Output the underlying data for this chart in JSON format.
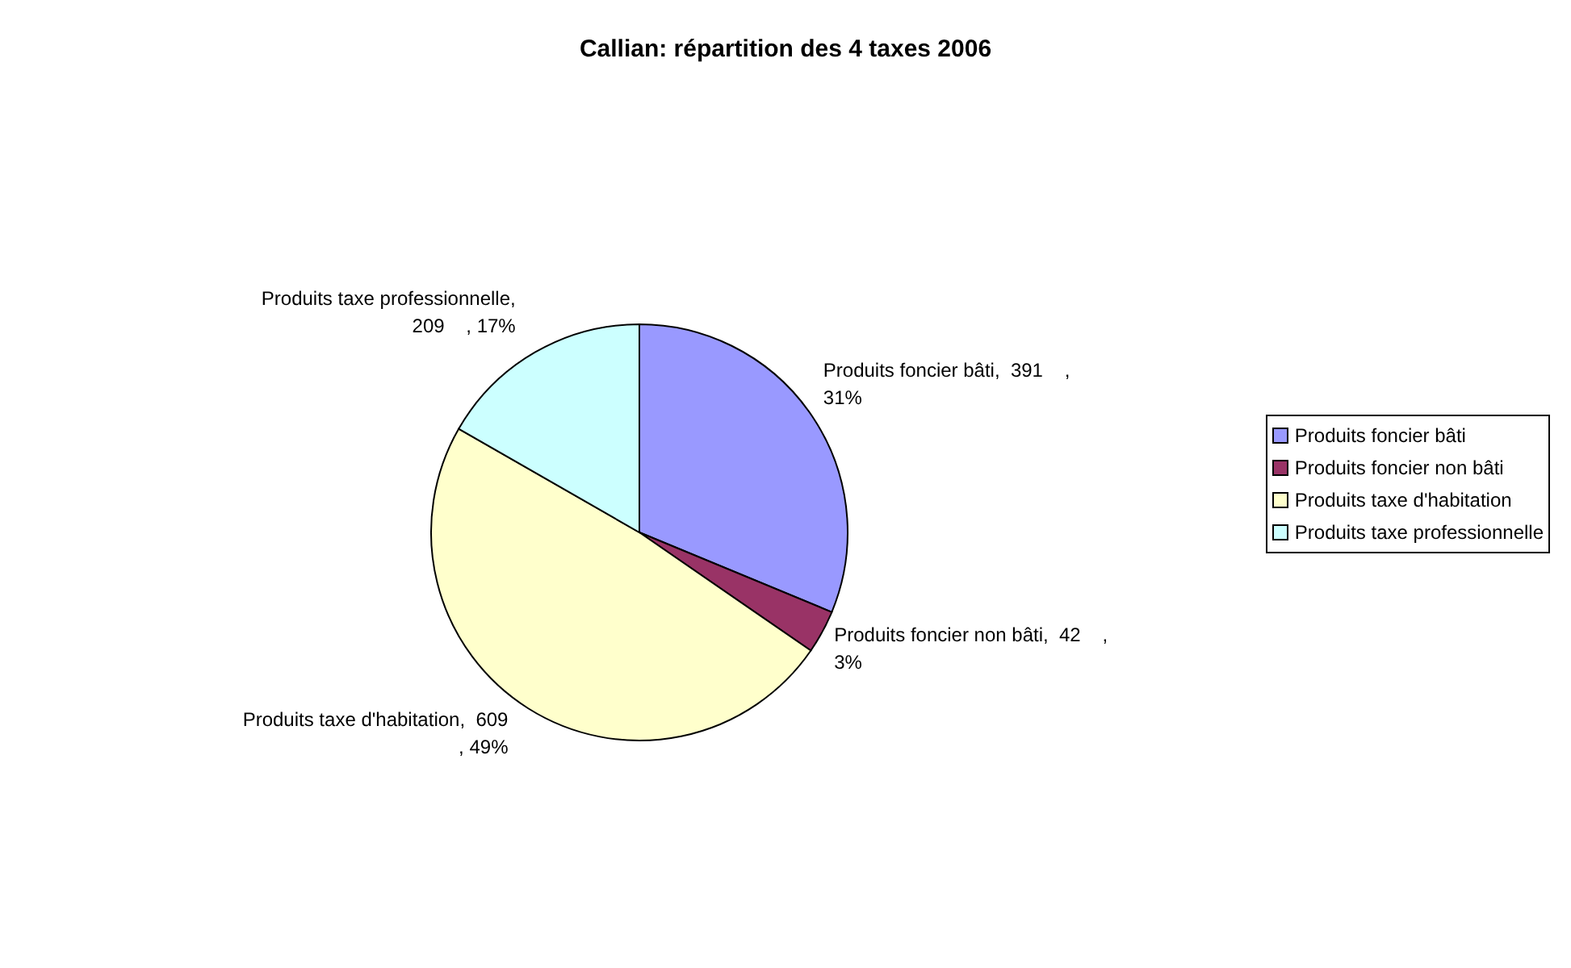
{
  "chart_data": {
    "type": "pie",
    "title": "Callian: répartition des 4 taxes 2006",
    "categories": [
      "Produits foncier bâti",
      "Produits foncier non bâti",
      "Produits taxe d'habitation",
      "Produits taxe professionnelle"
    ],
    "values": [
      391,
      42,
      609,
      209
    ],
    "colors": [
      "#9999ff",
      "#993366",
      "#ffffcc",
      "#ccffff"
    ],
    "value_labels": [
      "Produits foncier bâti,  391    ,\n31%",
      "Produits foncier non bâti,  42    ,\n3%",
      "Produits taxe d'habitation,  609\n, 49%",
      "Produits taxe professionnelle,\n209    , 17%"
    ],
    "legend": "right"
  }
}
